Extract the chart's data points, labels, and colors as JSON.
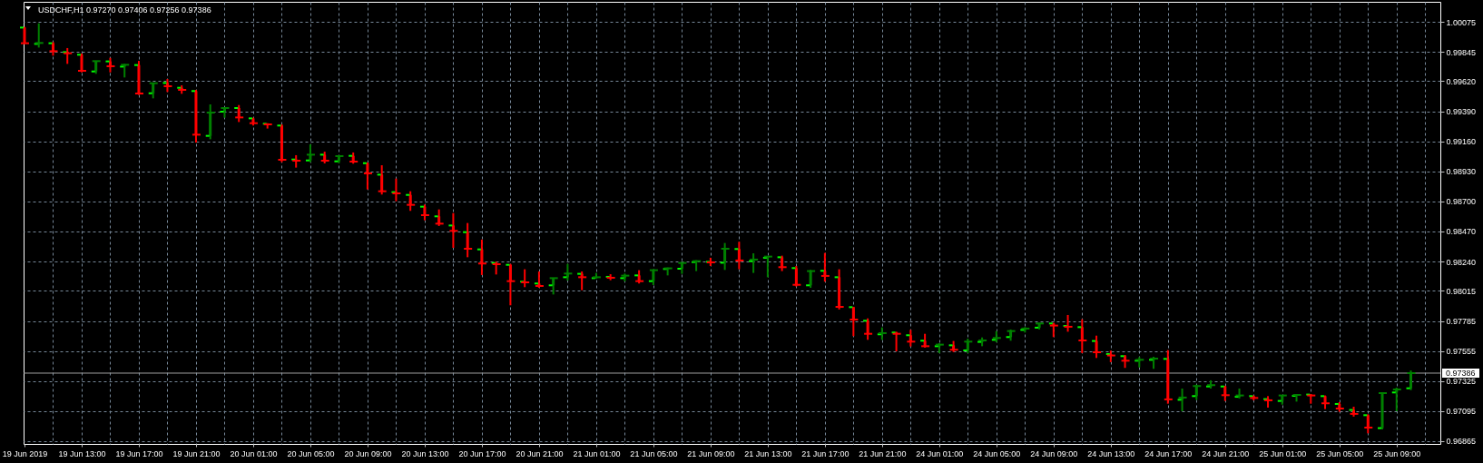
{
  "chart_data": {
    "type": "candlestick",
    "title": "USDCHF,H1 0.97270 0.97406 0.97256 0.97386",
    "categories": [
      "19 Jun 2019",
      null,
      null,
      null,
      "19 Jun 13:00",
      null,
      null,
      null,
      "19 Jun 17:00",
      null,
      null,
      null,
      "19 Jun 21:00",
      null,
      null,
      null,
      "20 Jun 01:00",
      null,
      null,
      null,
      "20 Jun 05:00",
      null,
      null,
      null,
      "20 Jun 09:00",
      null,
      null,
      null,
      "20 Jun 13:00",
      null,
      null,
      null,
      "20 Jun 17:00",
      null,
      null,
      null,
      "20 Jun 21:00",
      null,
      null,
      null,
      "21 Jun 01:00",
      null,
      null,
      null,
      "21 Jun 05:00",
      null,
      null,
      null,
      "21 Jun 09:00",
      null,
      null,
      null,
      "21 Jun 13:00",
      null,
      null,
      null,
      "21 Jun 17:00",
      null,
      null,
      null,
      "21 Jun 21:00",
      null,
      null,
      null,
      "24 Jun 01:00",
      null,
      null,
      null,
      "24 Jun 05:00",
      null,
      null,
      null,
      "24 Jun 09:00",
      null,
      null,
      null,
      "24 Jun 13:00",
      null,
      null,
      null,
      "24 Jun 17:00",
      null,
      null,
      null,
      "24 Jun 21:00",
      null,
      null,
      null,
      "25 Jun 01:00",
      null,
      null,
      null,
      "25 Jun 05:00",
      null,
      null,
      null,
      "25 Jun 09:00",
      null
    ],
    "ohlc": [
      [
        1.00031,
        1.00036,
        0.99904,
        0.99911
      ],
      [
        0.99906,
        1.00063,
        0.99878,
        0.99913
      ],
      [
        0.99911,
        0.9992,
        0.99816,
        0.9985
      ],
      [
        0.99843,
        0.99874,
        0.99753,
        0.99834
      ],
      [
        0.99823,
        0.99832,
        0.99688,
        0.997
      ],
      [
        0.99695,
        0.99774,
        0.99677,
        0.99774
      ],
      [
        0.99772,
        0.99799,
        0.99688,
        0.99735
      ],
      [
        0.99732,
        0.99753,
        0.99649,
        0.99746
      ],
      [
        0.99744,
        0.99776,
        0.99515,
        0.99526
      ],
      [
        0.99528,
        0.99605,
        0.99489,
        0.99605
      ],
      [
        0.99607,
        0.99637,
        0.99538,
        0.99582
      ],
      [
        0.9957,
        0.99589,
        0.99524,
        0.99554
      ],
      [
        0.99545,
        0.99554,
        0.99151,
        0.99211
      ],
      [
        0.99202,
        0.99443,
        0.99176,
        0.9938
      ],
      [
        0.99387,
        0.99422,
        0.99341,
        0.99415
      ],
      [
        0.99415,
        0.99438,
        0.99308,
        0.99343
      ],
      [
        0.99336,
        0.99341,
        0.99281,
        0.99299
      ],
      [
        0.99295,
        0.99299,
        0.99258,
        0.9929
      ],
      [
        0.99281,
        0.9929,
        0.99,
        0.99019
      ],
      [
        0.99021,
        0.99054,
        0.98959,
        0.99012
      ],
      [
        0.99014,
        0.99137,
        0.99,
        0.99058
      ],
      [
        0.99058,
        0.99081,
        0.98991,
        0.99012
      ],
      [
        0.99007,
        0.99051,
        0.98993,
        0.99047
      ],
      [
        0.99049,
        0.99075,
        0.98989,
        0.99005
      ],
      [
        0.98993,
        0.98998,
        0.98792,
        0.98915
      ],
      [
        0.98905,
        0.98977,
        0.98753,
        0.98778
      ],
      [
        0.98771,
        0.98875,
        0.98702,
        0.98762
      ],
      [
        0.9875,
        0.98778,
        0.98628,
        0.98674
      ],
      [
        0.9866,
        0.98676,
        0.98556,
        0.98595
      ],
      [
        0.98586,
        0.98639,
        0.98512,
        0.9853
      ],
      [
        0.98516,
        0.98611,
        0.98345,
        0.98475
      ],
      [
        0.98465,
        0.98535,
        0.98273,
        0.98338
      ],
      [
        0.98333,
        0.98408,
        0.98137,
        0.98225
      ],
      [
        0.98229,
        0.98238,
        0.98141,
        0.9822
      ],
      [
        0.98215,
        0.98222,
        0.97905,
        0.9809
      ],
      [
        0.98086,
        0.98181,
        0.98044,
        0.98081
      ],
      [
        0.98072,
        0.98164,
        0.98039,
        0.98053
      ],
      [
        0.98058,
        0.98113,
        0.97988,
        0.98113
      ],
      [
        0.9812,
        0.98222,
        0.98095,
        0.98148
      ],
      [
        0.98146,
        0.98164,
        0.98021,
        0.9812
      ],
      [
        0.98113,
        0.98153,
        0.98109,
        0.9812
      ],
      [
        0.98123,
        0.98143,
        0.98097,
        0.98116
      ],
      [
        0.98113,
        0.98148,
        0.98088,
        0.98132
      ],
      [
        0.98134,
        0.98174,
        0.98072,
        0.9809
      ],
      [
        0.9809,
        0.98181,
        0.9806,
        0.98174
      ],
      [
        0.98183,
        0.98194,
        0.98134,
        0.98188
      ],
      [
        0.98185,
        0.98236,
        0.98146,
        0.98229
      ],
      [
        0.98236,
        0.9825,
        0.98167,
        0.98243
      ],
      [
        0.98238,
        0.98269,
        0.98206,
        0.98234
      ],
      [
        0.98231,
        0.98382,
        0.98176,
        0.98338
      ],
      [
        0.98336,
        0.98391,
        0.98181,
        0.98248
      ],
      [
        0.98243,
        0.98303,
        0.98153,
        0.98255
      ],
      [
        0.98269,
        0.9828,
        0.9812,
        0.98278
      ],
      [
        0.98273,
        0.98285,
        0.98167,
        0.98197
      ],
      [
        0.9819,
        0.98206,
        0.98049,
        0.98062
      ],
      [
        0.98058,
        0.98176,
        0.98039,
        0.98167
      ],
      [
        0.98169,
        0.98306,
        0.98086,
        0.9813
      ],
      [
        0.9812,
        0.98181,
        0.97873,
        0.97893
      ],
      [
        0.97891,
        0.97893,
        0.97669,
        0.97796
      ],
      [
        0.97787,
        0.97805,
        0.97641,
        0.97687
      ],
      [
        0.97683,
        0.97736,
        0.97641,
        0.97692
      ],
      [
        0.97697,
        0.97703,
        0.97553,
        0.97687
      ],
      [
        0.97676,
        0.97717,
        0.9759,
        0.97627
      ],
      [
        0.97634,
        0.97687,
        0.97581,
        0.97592
      ],
      [
        0.97592,
        0.97615,
        0.97539,
        0.97604
      ],
      [
        0.97599,
        0.97632,
        0.97548,
        0.97565
      ],
      [
        0.9756,
        0.9765,
        0.97539,
        0.97627
      ],
      [
        0.97625,
        0.97659,
        0.97592,
        0.97636
      ],
      [
        0.97641,
        0.97708,
        0.97622,
        0.97655
      ],
      [
        0.97662,
        0.9772,
        0.97634,
        0.97708
      ],
      [
        0.97717,
        0.97738,
        0.97697,
        0.97727
      ],
      [
        0.97734,
        0.97771,
        0.9772,
        0.97766
      ],
      [
        0.97766,
        0.97771,
        0.97662,
        0.9775
      ],
      [
        0.97747,
        0.97831,
        0.97703,
        0.97741
      ],
      [
        0.97738,
        0.97798,
        0.97539,
        0.97636
      ],
      [
        0.97632,
        0.97673,
        0.97502,
        0.97546
      ],
      [
        0.97532,
        0.97558,
        0.9747,
        0.97521
      ],
      [
        0.97516,
        0.97525,
        0.97426,
        0.97481
      ],
      [
        0.97481,
        0.97509,
        0.9743,
        0.97488
      ],
      [
        0.97488,
        0.97511,
        0.97419,
        0.97497
      ],
      [
        0.97495,
        0.97562,
        0.97152,
        0.97185
      ],
      [
        0.97182,
        0.97268,
        0.97094,
        0.97199
      ],
      [
        0.9721,
        0.97298,
        0.97182,
        0.97287
      ],
      [
        0.97284,
        0.97331,
        0.97268,
        0.97294
      ],
      [
        0.97284,
        0.97289,
        0.97173,
        0.97217
      ],
      [
        0.97205,
        0.97268,
        0.97192,
        0.97215
      ],
      [
        0.9721,
        0.97215,
        0.97178,
        0.97196
      ],
      [
        0.97187,
        0.9721,
        0.97122,
        0.97178
      ],
      [
        0.97173,
        0.97219,
        0.97145,
        0.97215
      ],
      [
        0.97212,
        0.97224,
        0.97168,
        0.97219
      ],
      [
        0.97222,
        0.97226,
        0.97152,
        0.97215
      ],
      [
        0.9721,
        0.97215,
        0.97111,
        0.97155
      ],
      [
        0.9715,
        0.97164,
        0.9709,
        0.97115
      ],
      [
        0.97104,
        0.97129,
        0.97053,
        0.97074
      ],
      [
        0.97064,
        0.97071,
        0.96925,
        0.96969
      ],
      [
        0.96965,
        0.97236,
        0.96955,
        0.97233
      ],
      [
        0.97238,
        0.97275,
        0.97094,
        0.97261
      ],
      [
        0.9727,
        0.97406,
        0.97256,
        0.97386
      ]
    ],
    "colors": [
      "#ff0000",
      "#008000",
      "#ff0000",
      "#ff0000",
      "#ff0000",
      "#008000",
      "#ff0000",
      "#008000",
      "#ff0000",
      "#008000",
      "#ff0000",
      "#ff0000",
      "#ff0000",
      "#008000",
      "#008000",
      "#ff0000",
      "#ff0000",
      "#ff0000",
      "#ff0000",
      "#ff0000",
      "#008000",
      "#ff0000",
      "#008000",
      "#ff0000",
      "#ff0000",
      "#ff0000",
      "#ff0000",
      "#ff0000",
      "#ff0000",
      "#ff0000",
      "#ff0000",
      "#ff0000",
      "#ff0000",
      "#ff0000",
      "#ff0000",
      "#ff0000",
      "#ff0000",
      "#008000",
      "#008000",
      "#ff0000",
      "#008000",
      "#ff0000",
      "#008000",
      "#ff0000",
      "#008000",
      "#008000",
      "#008000",
      "#008000",
      "#ff0000",
      "#008000",
      "#ff0000",
      "#008000",
      "#008000",
      "#ff0000",
      "#ff0000",
      "#008000",
      "#ff0000",
      "#ff0000",
      "#ff0000",
      "#ff0000",
      "#008000",
      "#ff0000",
      "#ff0000",
      "#ff0000",
      "#008000",
      "#ff0000",
      "#008000",
      "#008000",
      "#008000",
      "#008000",
      "#008000",
      "#008000",
      "#ff0000",
      "#ff0000",
      "#ff0000",
      "#ff0000",
      "#ff0000",
      "#ff0000",
      "#008000",
      "#008000",
      "#ff0000",
      "#008000",
      "#008000",
      "#008000",
      "#ff0000",
      "#008000",
      "#ff0000",
      "#ff0000",
      "#008000",
      "#008000",
      "#ff0000",
      "#ff0000",
      "#ff0000",
      "#ff0000",
      "#ff0000",
      "#008000",
      "#008000",
      "#008000"
    ],
    "ylim": [
      0.96844,
      1.00228
    ],
    "yticks": [
      1.00075,
      0.99845,
      {
        "value": 0.9962,
        "label": "0.99620"
      },
      {
        "value": 0.9939,
        "label": "0.99390"
      },
      {
        "value": 0.9916,
        "label": "0.99160"
      },
      {
        "value": 0.9893,
        "label": "0.98930"
      },
      {
        "value": 0.987,
        "label": "0.98700"
      },
      {
        "value": 0.9847,
        "label": "0.98470"
      },
      {
        "value": 0.9824,
        "label": "0.98240"
      },
      0.98015,
      0.97785,
      0.97555,
      0.97325,
      0.97095,
      0.96865
    ],
    "grid": true,
    "ref_lines": [
      {
        "axis": "y",
        "value": 0.97386,
        "label": "0.97386",
        "color": "#a0a0a0"
      }
    ]
  }
}
